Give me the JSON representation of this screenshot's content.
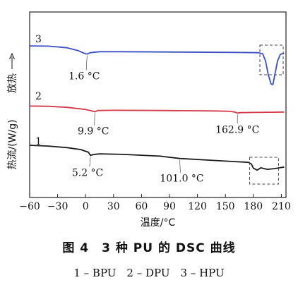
{
  "chart_data": {
    "type": "line",
    "xlabel": "温度/°C",
    "ylabel": "热流/(W/g)",
    "exo_label": "放热",
    "xlim": [
      -60,
      215
    ],
    "xticks": [
      -60,
      -30,
      0,
      30,
      60,
      90,
      120,
      150,
      180,
      210
    ],
    "yticks": "none",
    "grid": false,
    "series": [
      {
        "name": "3",
        "color": "#3b4fc4",
        "points": [
          [
            -60,
            1.2
          ],
          [
            -40,
            1.15
          ],
          [
            -20,
            0.8
          ],
          [
            -8,
            0.2
          ],
          [
            -2,
            -0.35
          ],
          [
            1.6,
            -0.55
          ],
          [
            5,
            -0.25
          ],
          [
            15,
            -0.05
          ],
          [
            40,
            -0.05
          ],
          [
            100,
            -0.12
          ],
          [
            160,
            -0.2
          ],
          [
            185,
            -0.25
          ],
          [
            190,
            -0.5
          ],
          [
            193,
            -2.0
          ],
          [
            196,
            -5.0
          ],
          [
            199,
            -7.0
          ],
          [
            201,
            -7.1
          ],
          [
            203,
            -5.0
          ],
          [
            206,
            -2.0
          ],
          [
            209,
            -0.6
          ],
          [
            213,
            -0.4
          ]
        ],
        "annotations": [
          {
            "text": "1.6 °C",
            "x": 1.6
          }
        ]
      },
      {
        "name": "2",
        "color": "#d43a4a",
        "points": [
          [
            -60,
            0.6
          ],
          [
            -40,
            0.55
          ],
          [
            -20,
            0.3
          ],
          [
            0,
            -0.2
          ],
          [
            6,
            -0.5
          ],
          [
            9.9,
            -0.75
          ],
          [
            13,
            -0.45
          ],
          [
            30,
            -0.4
          ],
          [
            80,
            -0.45
          ],
          [
            140,
            -0.55
          ],
          [
            155,
            -0.65
          ],
          [
            160,
            -0.8
          ],
          [
            162.9,
            -1.05
          ],
          [
            166,
            -0.95
          ],
          [
            180,
            -0.9
          ],
          [
            200,
            -0.85
          ],
          [
            213,
            -0.8
          ]
        ],
        "annotations": [
          {
            "text": "9.9 °C",
            "x": 9.9
          },
          {
            "text": "162.9 °C",
            "x": 162.9
          }
        ]
      },
      {
        "name": "1",
        "color": "#1a1a1a",
        "points": [
          [
            -60,
            2.0
          ],
          [
            -40,
            1.8
          ],
          [
            -20,
            1.4
          ],
          [
            -5,
            0.9
          ],
          [
            3,
            0.2
          ],
          [
            5.2,
            -0.6
          ],
          [
            8,
            -0.4
          ],
          [
            15,
            -0.2
          ],
          [
            40,
            -0.35
          ],
          [
            80,
            -0.8
          ],
          [
            101,
            -1.4
          ],
          [
            130,
            -1.8
          ],
          [
            160,
            -2.2
          ],
          [
            175,
            -2.4
          ],
          [
            178,
            -2.9
          ],
          [
            180,
            -3.9
          ],
          [
            184,
            -4.4
          ],
          [
            188,
            -3.8
          ],
          [
            195,
            -4.2
          ],
          [
            203,
            -4.0
          ],
          [
            213,
            -3.6
          ]
        ],
        "annotations": [
          {
            "text": "5.2 °C",
            "x": 5.2
          },
          {
            "text": "101.0 °C",
            "x": 101.0
          }
        ]
      }
    ],
    "highlights": [
      {
        "series": "3",
        "x_range": [
          187,
          212
        ]
      },
      {
        "series": "1",
        "x_range": [
          176,
          207
        ]
      }
    ]
  },
  "caption": {
    "title": "图 4　3 种 PU 的 DSC 曲线",
    "legend": "1 – BPU　2 – DPU　3 – HPU"
  }
}
